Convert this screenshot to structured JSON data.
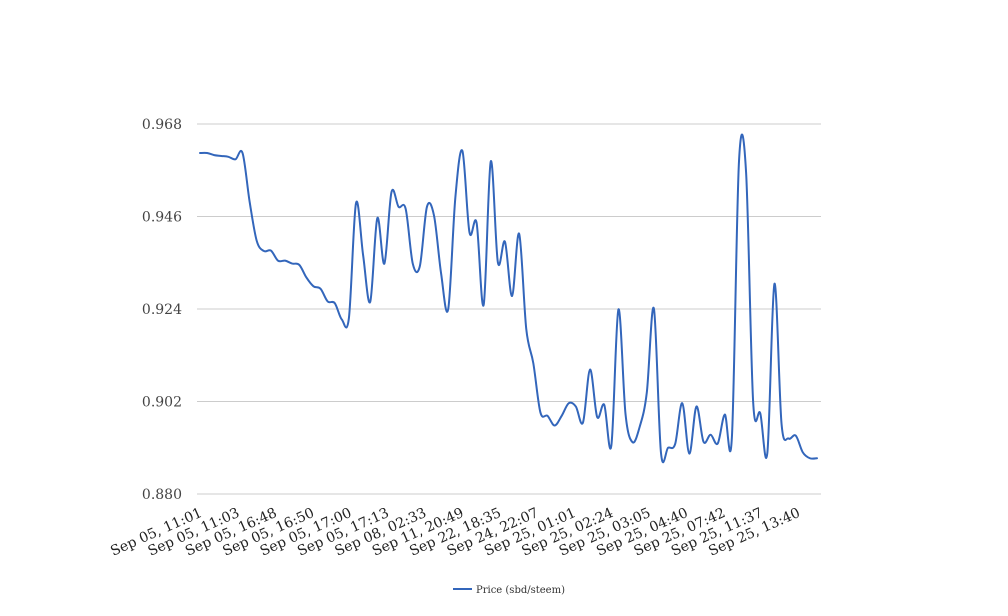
{
  "chart_data": {
    "type": "line",
    "title": "",
    "xlabel": "",
    "ylabel": "",
    "ylim": [
      0.88,
      0.968
    ],
    "yticks": [
      "0.968",
      "0.946",
      "0.924",
      "0.902",
      "0.880"
    ],
    "xtick_labels": [
      "Sep 05, 11:01",
      "Sep 05, 11:03",
      "Sep 05, 16:48",
      "Sep 05, 16:50",
      "Sep 05, 17:00",
      "Sep 05, 17:13",
      "Sep 08, 02:33",
      "Sep 11, 20:49",
      "Sep 22, 18:35",
      "Sep 24, 22:07",
      "Sep 25, 01:01",
      "Sep 25, 02:24",
      "Sep 25, 03:05",
      "Sep 25, 04:40",
      "Sep 25, 07:42",
      "Sep 25, 11:37",
      "Sep 25, 13:40"
    ],
    "grid": true,
    "legend_position": "bottom",
    "series": [
      {
        "name": "Price (sbd/steem)",
        "color": "#3366bb",
        "values": [
          0.9611,
          0.9611,
          0.9606,
          0.9604,
          0.9602,
          0.9596,
          0.9611,
          0.9495,
          0.9402,
          0.9378,
          0.9379,
          0.9355,
          0.9355,
          0.9348,
          0.9345,
          0.9315,
          0.9294,
          0.9288,
          0.9258,
          0.9254,
          0.9215,
          0.9219,
          0.9492,
          0.9368,
          0.9257,
          0.9456,
          0.9348,
          0.9518,
          0.9483,
          0.9478,
          0.9348,
          0.9342,
          0.9483,
          0.9462,
          0.9324,
          0.924,
          0.9504,
          0.9616,
          0.9422,
          0.9445,
          0.925,
          0.9591,
          0.9351,
          0.94,
          0.9271,
          0.9419,
          0.9193,
          0.9111,
          0.8994,
          0.8986,
          0.8963,
          0.8986,
          0.9016,
          0.9008,
          0.897,
          0.9096,
          0.8983,
          0.9012,
          0.8915,
          0.9239,
          0.899,
          0.8923,
          0.896,
          0.9041,
          0.9241,
          0.8898,
          0.891,
          0.8919,
          0.9016,
          0.8896,
          0.9008,
          0.8924,
          0.8941,
          0.892,
          0.8989,
          0.8935,
          0.9591,
          0.9565,
          0.9018,
          0.8992,
          0.8898,
          0.93,
          0.8967,
          0.8932,
          0.8939,
          0.8899,
          0.8885,
          0.8885
        ]
      }
    ]
  }
}
